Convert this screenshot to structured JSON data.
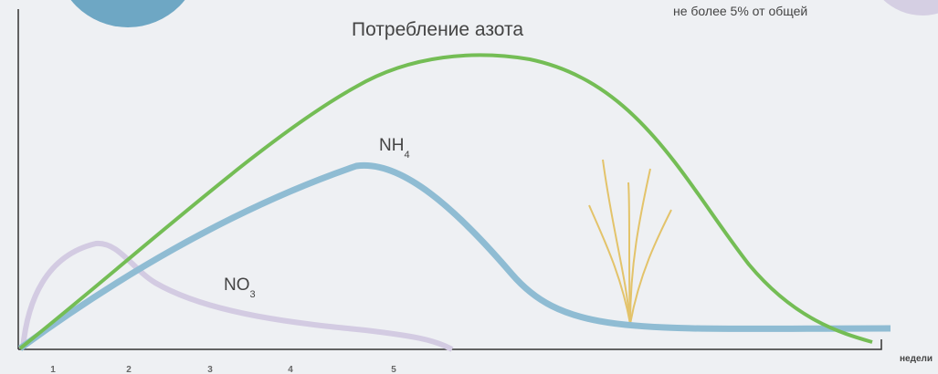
{
  "title": "Потребление азота",
  "note": "не более 5% от общей",
  "curve_labels": [
    {
      "text": "NH",
      "sub": "4"
    },
    {
      "text": "NO",
      "sub": "3"
    }
  ],
  "x_axis": {
    "ticks": [
      "1",
      "2",
      "3",
      "4",
      "5"
    ],
    "label": "недели"
  }
}
